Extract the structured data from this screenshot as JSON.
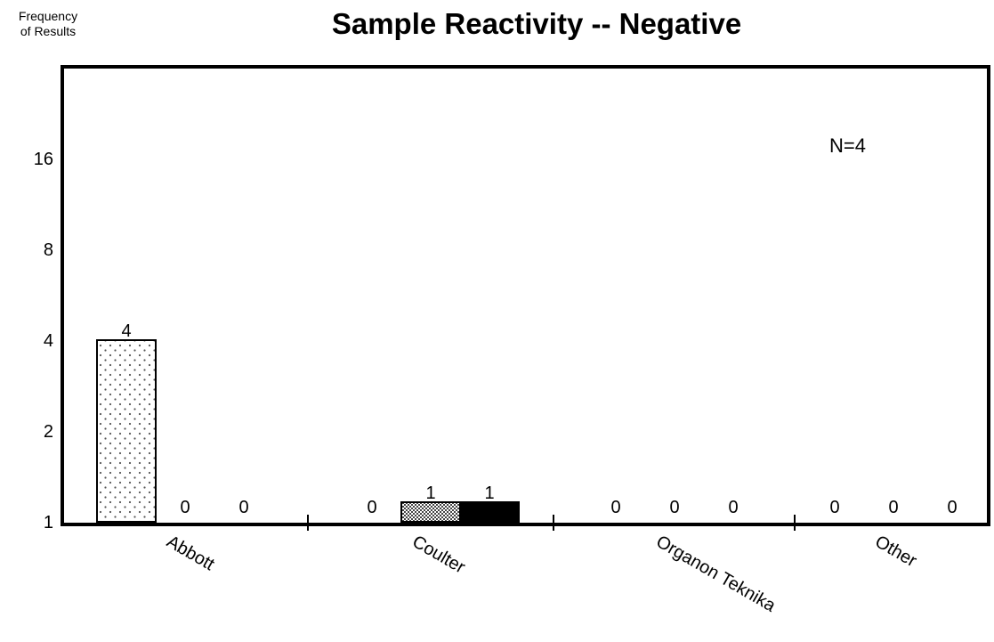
{
  "chart_data": {
    "type": "bar",
    "title": "Sample Reactivity -- Negative",
    "ylabel": [
      "Frequency",
      "of Results"
    ],
    "xlabel": "",
    "yscale": "log2",
    "ylim": [
      1,
      16
    ],
    "yticks": [
      1,
      2,
      4,
      8,
      16
    ],
    "categories": [
      "Abbott",
      "Coulter",
      "Organon Teknika",
      "Other"
    ],
    "groups": [
      {
        "category": "Abbott",
        "values": [
          4,
          0,
          0
        ],
        "fills": [
          "dots",
          "none",
          "none"
        ]
      },
      {
        "category": "Coulter",
        "values": [
          0,
          1,
          1
        ],
        "fills": [
          "none",
          "crosshatch",
          "solid"
        ]
      },
      {
        "category": "Organon Teknika",
        "values": [
          0,
          0,
          0
        ],
        "fills": [
          "none",
          "none",
          "none"
        ]
      },
      {
        "category": "Other",
        "values": [
          0,
          0,
          0
        ],
        "fills": [
          "none",
          "none",
          "none"
        ]
      }
    ],
    "annotation": "N=4",
    "grid": false,
    "legend": "none"
  }
}
